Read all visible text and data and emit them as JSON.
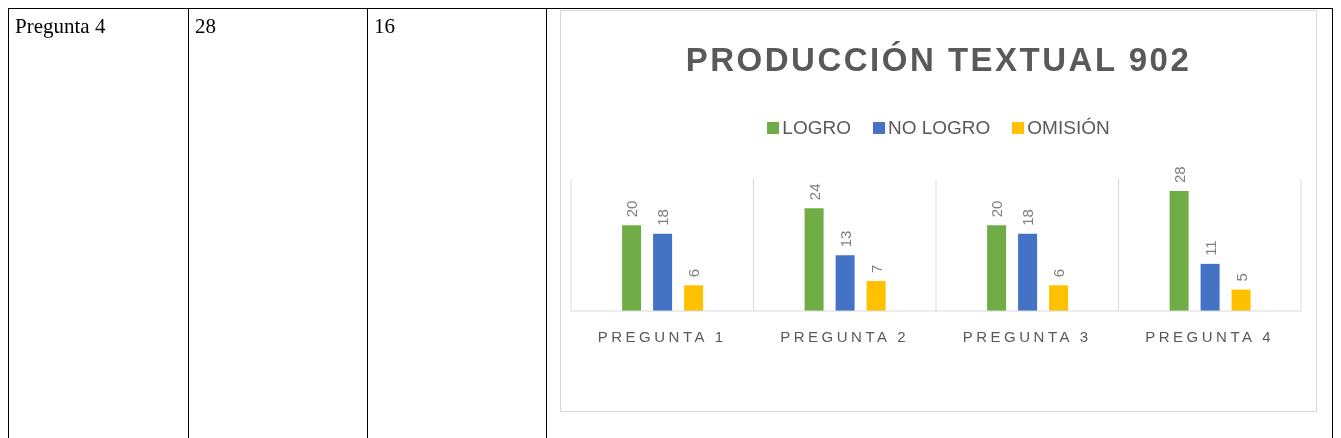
{
  "chart_data": [
    {
      "type": "other",
      "annotations": [
        "Pregunta 4",
        "28",
        "16"
      ]
    },
    {
      "type": "bar",
      "title": "PRODUCCIÓN TEXTUAL 902",
      "categories": [
        "PREGUNTA 1",
        "PREGUNTA 2",
        "PREGUNTA 3",
        "PREGUNTA 4"
      ],
      "series": [
        {
          "name": "LOGRO",
          "color": "#70ad47",
          "values": [
            20,
            24,
            20,
            28
          ]
        },
        {
          "name": "NO LOGRO",
          "color": "#4472c4",
          "values": [
            18,
            13,
            18,
            11
          ]
        },
        {
          "name": "OMISIÓN",
          "color": "#ffc000",
          "values": [
            6,
            7,
            6,
            5
          ]
        }
      ],
      "data_labels": true,
      "legend": "top",
      "grid": "x"
    }
  ]
}
